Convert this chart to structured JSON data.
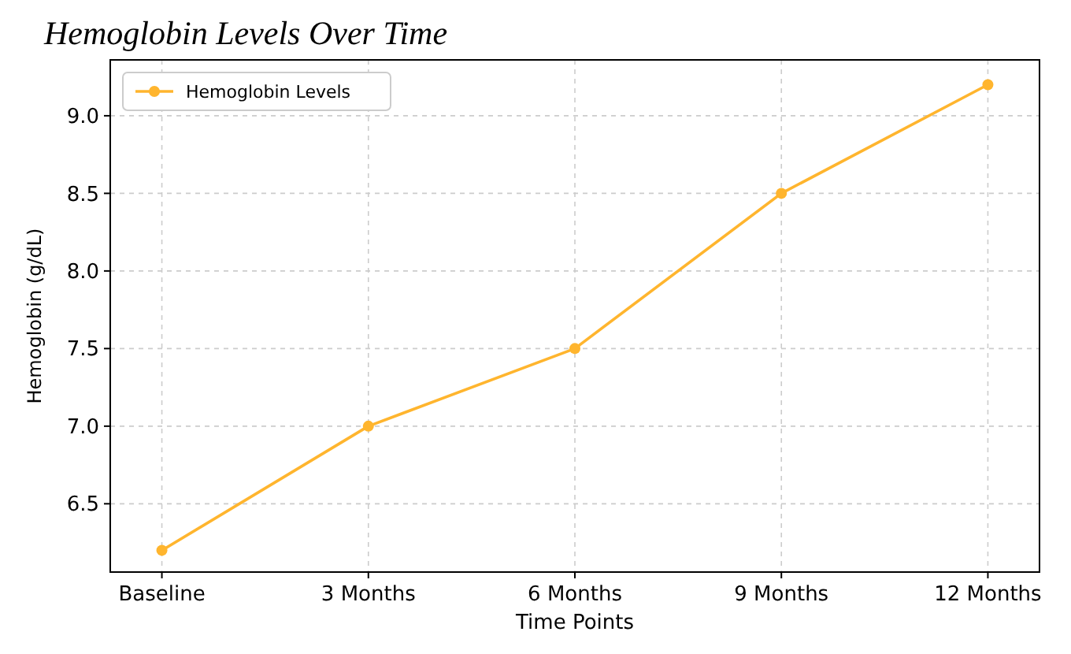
{
  "chart_data": {
    "type": "line",
    "title": "Hemoglobin Levels Over Time",
    "xlabel": "Time Points",
    "ylabel": "Hemoglobin (g/dL)",
    "categories": [
      "Baseline",
      "3 Months",
      "6 Months",
      "9 Months",
      "12 Months"
    ],
    "series": [
      {
        "name": "Hemoglobin Levels",
        "color": "#ffb52e",
        "values": [
          6.2,
          7.0,
          7.5,
          8.5,
          9.2
        ]
      }
    ],
    "ylim": [
      6.06,
      9.36
    ],
    "yticks": [
      {
        "value": 6.5,
        "label": "6.5"
      },
      {
        "value": 7.0,
        "label": "7.0"
      },
      {
        "value": 7.5,
        "label": "7.5"
      },
      {
        "value": 8.0,
        "label": "8.0"
      },
      {
        "value": 8.5,
        "label": "8.5"
      },
      {
        "value": 9.0,
        "label": "9.0"
      }
    ],
    "grid": true,
    "legend": "top left",
    "marker": "circle",
    "line_style": "solid"
  }
}
